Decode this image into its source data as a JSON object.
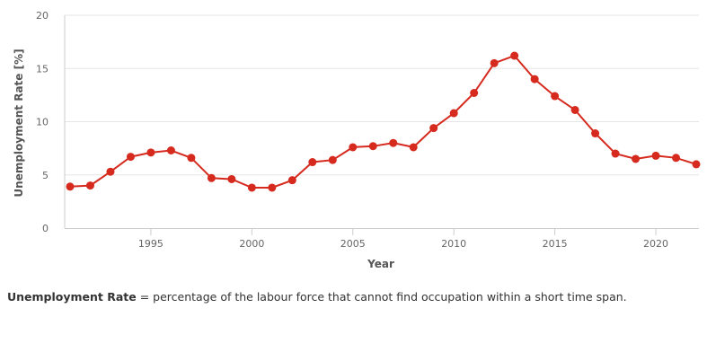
{
  "chart_data": {
    "type": "line",
    "xlabel": "Year",
    "ylabel": "Unemployment Rate [%]",
    "xlim": [
      1991,
      2022
    ],
    "ylim": [
      0,
      20
    ],
    "x_ticks": [
      1995,
      2000,
      2005,
      2010,
      2015,
      2020
    ],
    "y_ticks": [
      0,
      5,
      10,
      15,
      20
    ],
    "grid": "horizontal",
    "colors": {
      "line": "#d62a1e",
      "grid": "#e6e6e6",
      "axis": "#cccccc"
    },
    "x": [
      1991,
      1992,
      1993,
      1994,
      1995,
      1996,
      1997,
      1998,
      1999,
      2000,
      2001,
      2002,
      2003,
      2004,
      2005,
      2006,
      2007,
      2008,
      2009,
      2010,
      2011,
      2012,
      2013,
      2014,
      2015,
      2016,
      2017,
      2018,
      2019,
      2020,
      2021,
      2022
    ],
    "y": [
      3.9,
      4.0,
      5.3,
      6.7,
      7.1,
      7.3,
      6.6,
      4.7,
      4.6,
      3.8,
      3.8,
      4.5,
      6.2,
      6.4,
      7.6,
      7.7,
      8.0,
      7.6,
      9.4,
      10.8,
      12.7,
      15.5,
      16.2,
      14.0,
      12.4,
      11.1,
      8.9,
      7.0,
      6.5,
      6.8,
      6.6,
      6.0
    ]
  },
  "footnote": {
    "term": "Unemployment Rate",
    "definition": " = percentage of the labour force that cannot find occupation within a short time span."
  }
}
